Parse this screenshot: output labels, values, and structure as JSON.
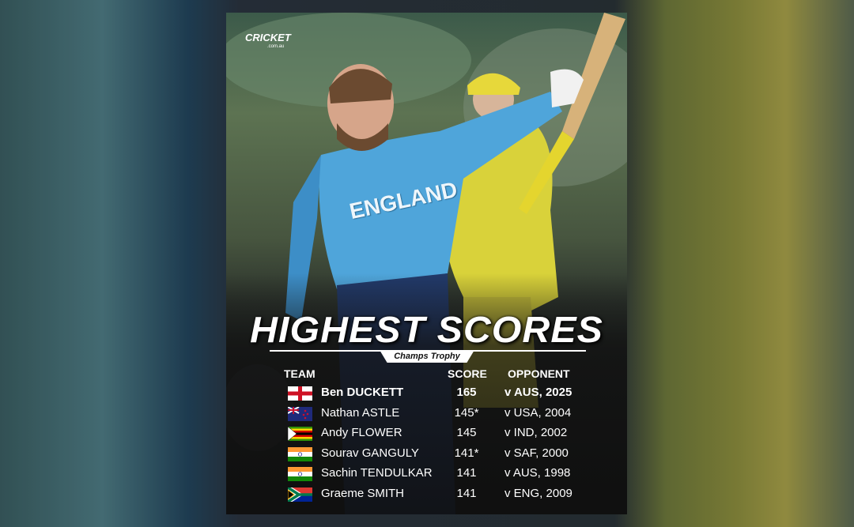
{
  "logo": {
    "brand": "CRICKET",
    "domain": ".com.au"
  },
  "jersey_text": "ENGLAND",
  "header": {
    "title": "HIGHEST SCORES",
    "subtitle": "Champs Trophy"
  },
  "table": {
    "columns": [
      "TEAM",
      "SCORE",
      "OPPONENT"
    ],
    "rows": [
      [
        "Ben DUCKETT",
        "165",
        "v AUS, 2025"
      ],
      [
        "Nathan ASTLE",
        "145*",
        "v USA, 2004"
      ],
      [
        "Andy FLOWER",
        "145",
        "v IND, 2002"
      ],
      [
        "Sourav GANGULY",
        "141*",
        "v SAF, 2000"
      ],
      [
        "Sachin TENDULKAR",
        "141",
        "v AUS, 1998"
      ],
      [
        "Graeme SMITH",
        "141",
        "v ENG, 2009"
      ]
    ]
  }
}
